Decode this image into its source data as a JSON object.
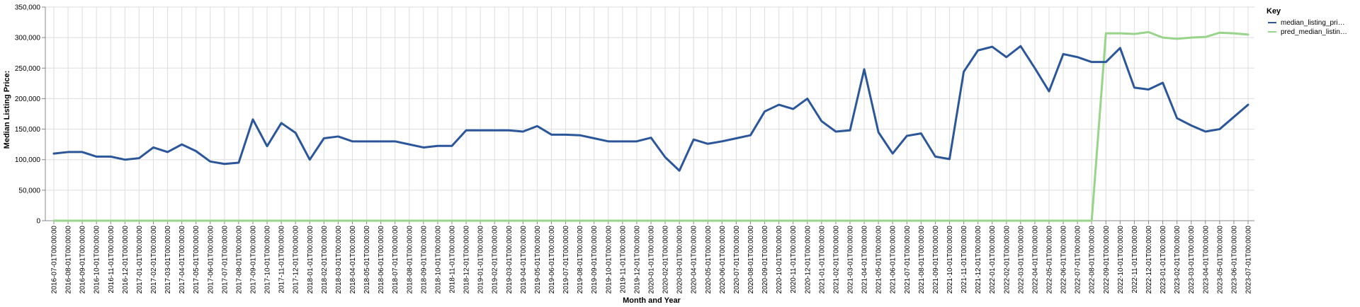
{
  "chart_data": {
    "type": "line",
    "xlabel": "Month and Year",
    "ylabel": "Median Listing Price:",
    "ylim": [
      0,
      350000
    ],
    "y_ticks": [
      0,
      50000,
      100000,
      150000,
      200000,
      250000,
      300000,
      350000
    ],
    "y_tick_labels": [
      "0",
      "50,000",
      "100,000",
      "150,000",
      "200,000",
      "250,000",
      "300,000",
      "350,000"
    ],
    "grid": true,
    "legend": {
      "title": "Key",
      "placement": "right",
      "entries": [
        "median_listing_pri…",
        "pred_median_listin…"
      ]
    },
    "x": [
      "2016-07-01T00:00:00",
      "2016-08-01T00:00:00",
      "2016-09-01T00:00:00",
      "2016-10-01T00:00:00",
      "2016-11-01T00:00:00",
      "2016-12-01T00:00:00",
      "2017-01-01T00:00:00",
      "2017-02-01T00:00:00",
      "2017-03-01T00:00:00",
      "2017-04-01T00:00:00",
      "2017-05-01T00:00:00",
      "2017-06-01T00:00:00",
      "2017-07-01T00:00:00",
      "2017-08-01T00:00:00",
      "2017-09-01T00:00:00",
      "2017-10-01T00:00:00",
      "2017-11-01T00:00:00",
      "2017-12-01T00:00:00",
      "2018-01-01T00:00:00",
      "2018-02-01T00:00:00",
      "2018-03-01T00:00:00",
      "2018-04-01T00:00:00",
      "2018-05-01T00:00:00",
      "2018-06-01T00:00:00",
      "2018-07-01T00:00:00",
      "2018-08-01T00:00:00",
      "2018-09-01T00:00:00",
      "2018-10-01T00:00:00",
      "2018-11-01T00:00:00",
      "2018-12-01T00:00:00",
      "2019-01-01T00:00:00",
      "2019-02-01T00:00:00",
      "2019-03-01T00:00:00",
      "2019-04-01T00:00:00",
      "2019-05-01T00:00:00",
      "2019-06-01T00:00:00",
      "2019-07-01T00:00:00",
      "2019-08-01T00:00:00",
      "2019-09-01T00:00:00",
      "2019-10-01T00:00:00",
      "2019-11-01T00:00:00",
      "2019-12-01T00:00:00",
      "2020-01-01T00:00:00",
      "2020-02-01T00:00:00",
      "2020-03-01T00:00:00",
      "2020-04-01T00:00:00",
      "2020-05-01T00:00:00",
      "2020-06-01T00:00:00",
      "2020-07-01T00:00:00",
      "2020-08-01T00:00:00",
      "2020-09-01T00:00:00",
      "2020-10-01T00:00:00",
      "2020-11-01T00:00:00",
      "2020-12-01T00:00:00",
      "2021-01-01T00:00:00",
      "2021-02-01T00:00:00",
      "2021-03-01T00:00:00",
      "2021-04-01T00:00:00",
      "2021-05-01T00:00:00",
      "2021-06-01T00:00:00",
      "2021-07-01T00:00:00",
      "2021-08-01T00:00:00",
      "2021-09-01T00:00:00",
      "2021-10-01T00:00:00",
      "2021-11-01T00:00:00",
      "2021-12-01T00:00:00",
      "2022-01-01T00:00:00",
      "2022-02-01T00:00:00",
      "2022-03-01T00:00:00",
      "2022-04-01T00:00:00",
      "2022-05-01T00:00:00",
      "2022-06-01T00:00:00",
      "2022-07-01T00:00:00",
      "2022-08-01T00:00:00",
      "2022-09-01T00:00:00",
      "2022-10-01T00:00:00",
      "2022-11-01T00:00:00",
      "2022-12-01T00:00:00",
      "2023-01-01T00:00:00",
      "2023-02-01T00:00:00",
      "2023-03-01T00:00:00",
      "2023-04-01T00:00:00",
      "2023-05-01T00:00:00",
      "2023-06-01T00:00:00",
      "2023-07-01T00:00:00"
    ],
    "series": [
      {
        "name": "median_listing_pri…",
        "color": "#2b579a",
        "values": [
          110000,
          112500,
          112500,
          105000,
          105000,
          100000,
          102500,
          120000,
          112500,
          125000,
          114000,
          97000,
          93000,
          95000,
          166000,
          122000,
          160000,
          144000,
          100000,
          135000,
          138000,
          130000,
          130000,
          130000,
          130000,
          125000,
          120000,
          122500,
          122500,
          148000,
          148000,
          148000,
          148000,
          146000,
          155000,
          141000,
          141000,
          140000,
          135000,
          130000,
          130000,
          130000,
          136000,
          104000,
          82000,
          133000,
          126000,
          130000,
          135000,
          140000,
          179000,
          190000,
          183000,
          200000,
          163000,
          146000,
          148000,
          248000,
          145000,
          110000,
          139000,
          143000,
          105000,
          101000,
          244000,
          279000,
          285000,
          268000,
          286000,
          250000,
          212000,
          273000,
          268000,
          260000,
          260000,
          283000,
          218000,
          215000,
          226000,
          168000,
          156000,
          146000,
          150000,
          170000,
          190000
        ]
      },
      {
        "name": "pred_median_listin…",
        "color": "#98d48a",
        "values": [
          0,
          0,
          0,
          0,
          0,
          0,
          0,
          0,
          0,
          0,
          0,
          0,
          0,
          0,
          0,
          0,
          0,
          0,
          0,
          0,
          0,
          0,
          0,
          0,
          0,
          0,
          0,
          0,
          0,
          0,
          0,
          0,
          0,
          0,
          0,
          0,
          0,
          0,
          0,
          0,
          0,
          0,
          0,
          0,
          0,
          0,
          0,
          0,
          0,
          0,
          0,
          0,
          0,
          0,
          0,
          0,
          0,
          0,
          0,
          0,
          0,
          0,
          0,
          0,
          0,
          0,
          0,
          0,
          0,
          0,
          0,
          0,
          0,
          0,
          307000,
          307000,
          306000,
          309000,
          300000,
          298000,
          300000,
          301000,
          308000,
          307000,
          305000
        ]
      }
    ]
  },
  "colors": {
    "grid": "#dddddd",
    "axis": "#888888",
    "median_series": "#2b579a",
    "pred_series": "#98d48a"
  }
}
